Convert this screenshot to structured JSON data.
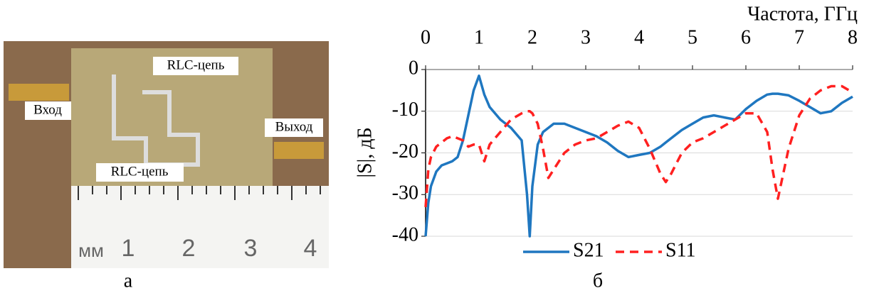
{
  "photo": {
    "labels": [
      "RLC-цепь",
      "Вход",
      "Выход",
      "RLC-цепь"
    ],
    "ruler_labels": [
      "мм",
      "1",
      "2",
      "3",
      "4"
    ],
    "caption": "а"
  },
  "chart_data": {
    "type": "line",
    "caption": "б",
    "x_label": "Частота, ГГц",
    "y_label": "|S|, дБ",
    "xlim": [
      0,
      8
    ],
    "xticks": [
      0,
      1,
      2,
      3,
      4,
      5,
      6,
      7,
      8
    ],
    "ylim": [
      -40,
      0
    ],
    "yticks": [
      0,
      -10,
      -20,
      -30,
      -40
    ],
    "grid": true,
    "legend": "bottom",
    "x": [
      0,
      0.05,
      0.1,
      0.2,
      0.3,
      0.4,
      0.5,
      0.6,
      0.7,
      0.8,
      0.9,
      1.0,
      1.1,
      1.2,
      1.4,
      1.6,
      1.8,
      1.9,
      1.95,
      2.0,
      2.1,
      2.2,
      2.3,
      2.4,
      2.6,
      2.8,
      3.0,
      3.2,
      3.4,
      3.6,
      3.8,
      4.0,
      4.2,
      4.4,
      4.5,
      4.6,
      4.8,
      5.0,
      5.2,
      5.4,
      5.6,
      5.8,
      6.0,
      6.2,
      6.4,
      6.5,
      6.6,
      6.8,
      7.0,
      7.2,
      7.4,
      7.6,
      7.8,
      8.0
    ],
    "series": [
      {
        "name": "S21",
        "color": "#1f77c0",
        "dash": "solid",
        "values": [
          -40,
          -32,
          -28,
          -24.5,
          -23,
          -22.5,
          -22,
          -21,
          -17,
          -11,
          -5,
          -1.5,
          -6,
          -9,
          -12,
          -14,
          -17,
          -30,
          -40,
          -28,
          -18,
          -15,
          -14,
          -13,
          -13,
          -14,
          -15,
          -16,
          -17.5,
          -19.5,
          -21,
          -20.5,
          -20,
          -18.5,
          -17.5,
          -16.5,
          -14.5,
          -13,
          -11.5,
          -11,
          -11.5,
          -12,
          -9.5,
          -7.5,
          -6,
          -5.8,
          -5.8,
          -6.2,
          -7.5,
          -9,
          -10.5,
          -10,
          -8,
          -6.5
        ]
      },
      {
        "name": "S11",
        "color": "#ff2020",
        "dash": "dashed",
        "values": [
          -33,
          -24,
          -21,
          -18.5,
          -17.5,
          -16.5,
          -16,
          -16.5,
          -17,
          -18.5,
          -18,
          -18,
          -22,
          -18,
          -15,
          -12,
          -10.5,
          -10,
          -10,
          -10.5,
          -13,
          -19,
          -26,
          -24,
          -20,
          -18,
          -17,
          -16.5,
          -15,
          -13.5,
          -12.5,
          -14,
          -19,
          -25,
          -27,
          -25,
          -20,
          -17.5,
          -16.5,
          -15,
          -13.5,
          -12,
          -10.5,
          -10.5,
          -15,
          -24,
          -31,
          -19,
          -11,
          -7,
          -5,
          -4,
          -4,
          -5.5
        ]
      }
    ]
  }
}
